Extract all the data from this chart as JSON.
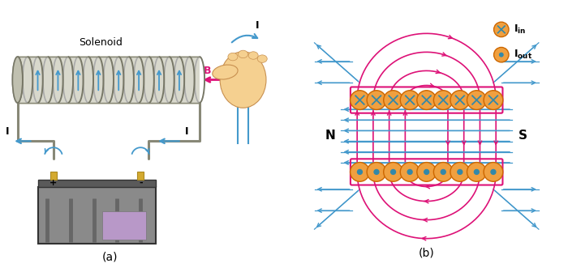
{
  "bg_color": "#ffffff",
  "label_a": "(a)",
  "label_b": "(b)",
  "solenoid_label": "Solenoid",
  "B_label": "B",
  "N_label": "N",
  "S_label": "S",
  "blue": "#4499cc",
  "pink": "#dd1177",
  "orange": "#f0a040",
  "wire_color": "#888877",
  "coil_fill": "#c8c8b8",
  "coil_edge": "#777766"
}
